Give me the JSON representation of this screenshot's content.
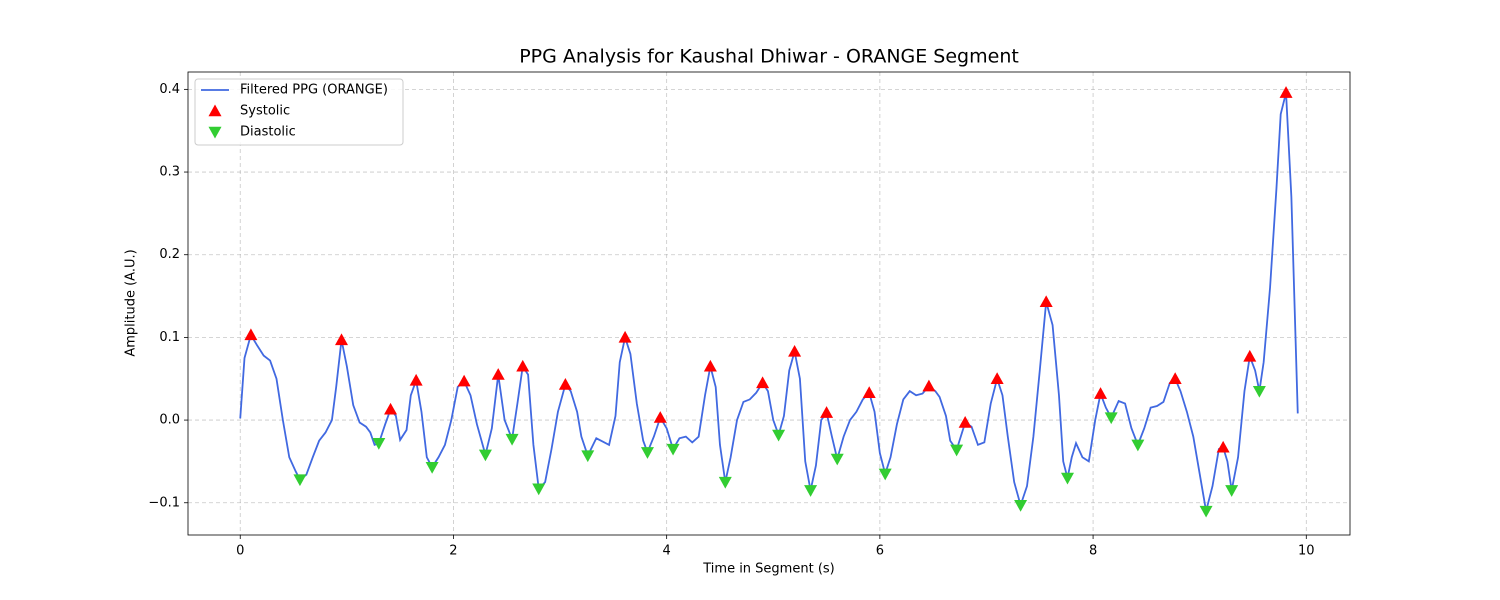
{
  "chart_data": {
    "type": "line",
    "title": "PPG Analysis for Kaushal Dhiwar - ORANGE Segment",
    "xlabel": "Time in Segment (s)",
    "ylabel": "Amplitude (A.U.)",
    "xlim": [
      -0.49,
      10.41
    ],
    "ylim": [
      -0.139,
      0.421
    ],
    "xticks": [
      0,
      2,
      4,
      6,
      8,
      10
    ],
    "yticks": [
      {
        "value": -0.1,
        "label": "−0.1"
      },
      {
        "value": 0,
        "label": "0.0"
      },
      {
        "value": 0.1,
        "label": "0.1"
      },
      {
        "value": 0.2,
        "label": "0.2"
      },
      {
        "value": 0.3,
        "label": "0.3"
      },
      {
        "value": 0.4,
        "label": "0.4"
      }
    ],
    "grid": true,
    "legend": "upper left",
    "series": [
      {
        "name": "Filtered PPG (ORANGE)",
        "type": "line",
        "color": "#4169e1",
        "x": [
          0,
          0.04,
          0.1,
          0.16,
          0.22,
          0.28,
          0.34,
          0.4,
          0.46,
          0.52,
          0.56,
          0.62,
          0.68,
          0.74,
          0.8,
          0.86,
          0.9,
          0.95,
          1.0,
          1.06,
          1.12,
          1.18,
          1.22,
          1.26,
          1.3,
          1.36,
          1.41,
          1.46,
          1.5,
          1.56,
          1.6,
          1.65,
          1.7,
          1.75,
          1.8,
          1.86,
          1.92,
          1.98,
          2.04,
          2.1,
          2.16,
          2.22,
          2.3,
          2.36,
          2.42,
          2.48,
          2.55,
          2.6,
          2.65,
          2.7,
          2.75,
          2.8,
          2.86,
          2.92,
          2.98,
          3.05,
          3.1,
          3.16,
          3.2,
          3.26,
          3.34,
          3.4,
          3.46,
          3.52,
          3.56,
          3.61,
          3.66,
          3.72,
          3.78,
          3.82,
          3.88,
          3.94,
          4.0,
          4.06,
          4.12,
          4.18,
          4.24,
          4.3,
          4.36,
          4.41,
          4.46,
          4.5,
          4.55,
          4.6,
          4.66,
          4.72,
          4.78,
          4.84,
          4.9,
          4.95,
          5.0,
          5.05,
          5.1,
          5.15,
          5.2,
          5.25,
          5.3,
          5.35,
          5.4,
          5.45,
          5.5,
          5.55,
          5.6,
          5.66,
          5.72,
          5.78,
          5.84,
          5.9,
          5.95,
          6.0,
          6.05,
          6.1,
          6.16,
          6.22,
          6.28,
          6.34,
          6.4,
          6.46,
          6.52,
          6.56,
          6.62,
          6.66,
          6.72,
          6.8,
          6.86,
          6.92,
          6.98,
          7.04,
          7.1,
          7.15,
          7.2,
          7.26,
          7.32,
          7.38,
          7.44,
          7.5,
          7.56,
          7.62,
          7.68,
          7.72,
          7.76,
          7.8,
          7.84,
          7.9,
          7.96,
          8.02,
          8.07,
          8.12,
          8.17,
          8.24,
          8.3,
          8.36,
          8.42,
          8.48,
          8.54,
          8.6,
          8.66,
          8.72,
          8.77,
          8.82,
          8.88,
          8.94,
          9.0,
          9.06,
          9.12,
          9.18,
          9.22,
          9.26,
          9.3,
          9.36,
          9.42,
          9.47,
          9.52,
          9.56,
          9.6,
          9.66,
          9.72,
          9.76,
          9.81,
          9.86,
          9.92
        ],
        "values": [
          0.002,
          0.075,
          0.103,
          0.09,
          0.078,
          0.072,
          0.05,
          0.0,
          -0.045,
          -0.062,
          -0.072,
          -0.066,
          -0.045,
          -0.025,
          -0.015,
          0.0,
          0.04,
          0.097,
          0.065,
          0.018,
          -0.003,
          -0.008,
          -0.015,
          -0.03,
          -0.028,
          -0.005,
          0.013,
          0.005,
          -0.024,
          -0.012,
          0.03,
          0.048,
          0.01,
          -0.045,
          -0.057,
          -0.045,
          -0.03,
          0.0,
          0.04,
          0.047,
          0.03,
          -0.005,
          -0.042,
          -0.01,
          0.055,
          0.0,
          -0.023,
          0.02,
          0.065,
          0.055,
          -0.03,
          -0.083,
          -0.075,
          -0.035,
          0.01,
          0.043,
          0.035,
          0.01,
          -0.02,
          -0.043,
          -0.022,
          -0.026,
          -0.03,
          0.005,
          0.07,
          0.1,
          0.08,
          0.02,
          -0.025,
          -0.039,
          -0.02,
          0.003,
          -0.01,
          -0.035,
          -0.022,
          -0.02,
          -0.027,
          -0.02,
          0.03,
          0.065,
          0.04,
          -0.03,
          -0.075,
          -0.045,
          0.0,
          0.022,
          0.025,
          0.033,
          0.045,
          0.035,
          0.0,
          -0.018,
          0.005,
          0.06,
          0.083,
          0.05,
          -0.05,
          -0.085,
          -0.055,
          0.0,
          0.009,
          -0.02,
          -0.047,
          -0.02,
          0.0,
          0.01,
          0.025,
          0.033,
          0.01,
          -0.04,
          -0.065,
          -0.045,
          -0.005,
          0.025,
          0.035,
          0.03,
          0.032,
          0.041,
          0.035,
          0.028,
          0.005,
          -0.025,
          -0.036,
          -0.003,
          -0.008,
          -0.03,
          -0.027,
          0.02,
          0.05,
          0.03,
          -0.02,
          -0.075,
          -0.103,
          -0.08,
          -0.02,
          0.06,
          0.143,
          0.115,
          0.03,
          -0.05,
          -0.07,
          -0.045,
          -0.028,
          -0.045,
          -0.05,
          0.0,
          0.032,
          0.015,
          0.003,
          0.023,
          0.02,
          -0.01,
          -0.03,
          -0.01,
          0.015,
          0.017,
          0.022,
          0.045,
          0.05,
          0.035,
          0.01,
          -0.02,
          -0.065,
          -0.11,
          -0.08,
          -0.035,
          -0.033,
          -0.05,
          -0.085,
          -0.045,
          0.035,
          0.077,
          0.06,
          0.035,
          0.07,
          0.16,
          0.28,
          0.37,
          0.396,
          0.27,
          0.008
        ]
      },
      {
        "name": "Systolic",
        "type": "scatter",
        "marker": "triangle-up",
        "color": "#ff0000",
        "x": [
          0.1,
          0.95,
          1.41,
          1.65,
          2.1,
          2.42,
          2.65,
          3.05,
          3.61,
          3.94,
          4.41,
          4.9,
          5.2,
          5.5,
          5.9,
          6.46,
          6.8,
          7.1,
          7.56,
          8.07,
          8.77,
          9.22,
          9.47,
          9.81
        ],
        "values": [
          0.103,
          0.097,
          0.013,
          0.048,
          0.047,
          0.055,
          0.065,
          0.043,
          0.1,
          0.003,
          0.065,
          0.045,
          0.083,
          0.009,
          0.033,
          0.041,
          -0.003,
          0.05,
          0.143,
          0.032,
          0.05,
          -0.033,
          0.077,
          0.396
        ]
      },
      {
        "name": "Diastolic",
        "type": "scatter",
        "marker": "triangle-down",
        "color": "#32cd32",
        "x": [
          0.56,
          1.3,
          1.8,
          2.3,
          2.55,
          2.8,
          3.26,
          3.82,
          4.06,
          4.55,
          5.05,
          5.35,
          5.6,
          6.05,
          6.72,
          7.32,
          7.76,
          8.17,
          8.42,
          9.06,
          9.3,
          9.56
        ],
        "values": [
          -0.072,
          -0.028,
          -0.057,
          -0.042,
          -0.023,
          -0.083,
          -0.043,
          -0.039,
          -0.035,
          -0.075,
          -0.018,
          -0.085,
          -0.047,
          -0.065,
          -0.036,
          -0.103,
          -0.07,
          0.003,
          -0.03,
          -0.11,
          -0.085,
          0.035
        ]
      }
    ]
  }
}
